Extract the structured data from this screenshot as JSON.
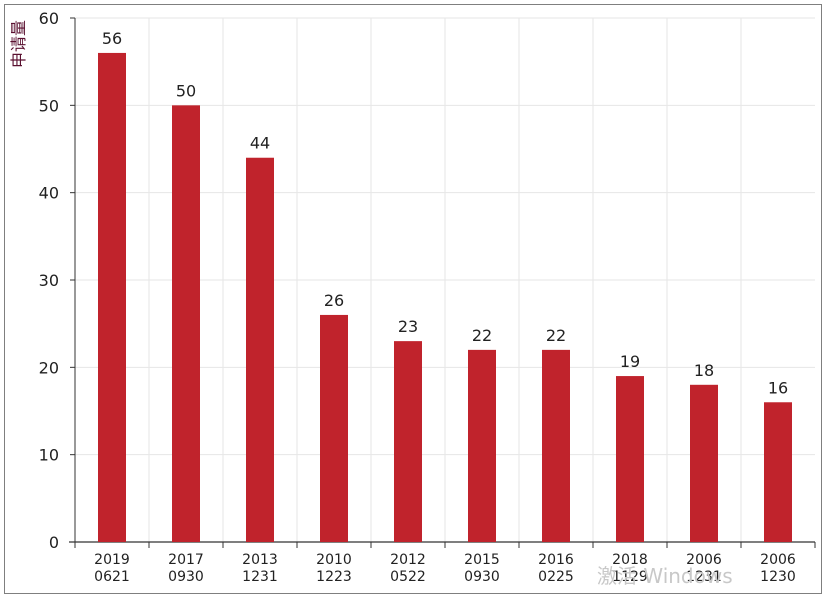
{
  "chart_data": {
    "type": "bar",
    "title": "",
    "ylabel": "申请量",
    "xlabel": "",
    "ylim": [
      0,
      60
    ],
    "yticks": [
      0,
      10,
      20,
      30,
      40,
      50,
      60
    ],
    "grid": true,
    "bar_color": "#c0232c",
    "categories": [
      [
        "2019",
        "0621"
      ],
      [
        "2017",
        "0930"
      ],
      [
        "2013",
        "1231"
      ],
      [
        "2010",
        "1223"
      ],
      [
        "2012",
        "0522"
      ],
      [
        "2015",
        "0930"
      ],
      [
        "2016",
        "0225"
      ],
      [
        "2018",
        "1129"
      ],
      [
        "2006",
        "1231"
      ],
      [
        "2006",
        "1230"
      ]
    ],
    "values": [
      56,
      50,
      44,
      26,
      23,
      22,
      22,
      19,
      18,
      16
    ]
  },
  "watermark": "激活 Windows"
}
